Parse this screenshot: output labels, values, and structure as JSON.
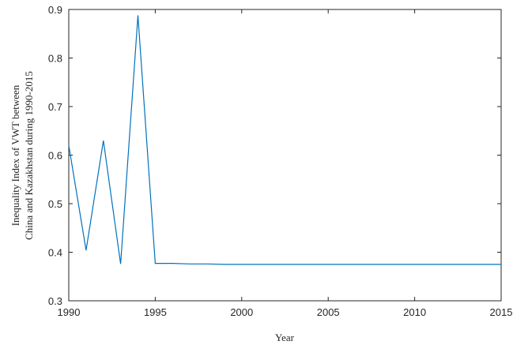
{
  "chart_data": {
    "type": "line",
    "xlabel": "Year",
    "ylabel_lines": [
      "Inequality Index of VWT between",
      "China and Kazakhstan during 1990-2015"
    ],
    "xlim": [
      1990,
      2015
    ],
    "ylim": [
      0.3,
      0.9
    ],
    "xticks": [
      "1990",
      "1995",
      "2000",
      "2005",
      "2010",
      "2015"
    ],
    "yticks": [
      "0.3",
      "0.4",
      "0.5",
      "0.6",
      "0.7",
      "0.8",
      "0.9"
    ],
    "grid": false,
    "legend": "none",
    "series": [
      {
        "color": "#0072BD",
        "x": [
          1990,
          1991,
          1992,
          1993,
          1994,
          1995,
          1996,
          1997,
          1998,
          1999,
          2000,
          2001,
          2002,
          2003,
          2004,
          2005,
          2006,
          2007,
          2008,
          2009,
          2010,
          2011,
          2012,
          2013,
          2014,
          2015
        ],
        "y": [
          0.62,
          0.404,
          0.63,
          0.376,
          0.888,
          0.377,
          0.377,
          0.376,
          0.376,
          0.375,
          0.375,
          0.375,
          0.375,
          0.375,
          0.375,
          0.375,
          0.375,
          0.375,
          0.375,
          0.375,
          0.375,
          0.375,
          0.375,
          0.375,
          0.375,
          0.375
        ]
      }
    ]
  }
}
